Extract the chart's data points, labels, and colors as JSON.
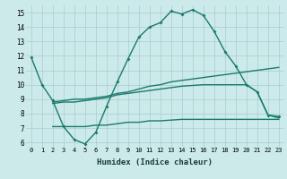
{
  "xlabel": "Humidex (Indice chaleur)",
  "xlim": [
    -0.5,
    23.5
  ],
  "ylim": [
    5.7,
    15.5
  ],
  "yticks": [
    6,
    7,
    8,
    9,
    10,
    11,
    12,
    13,
    14,
    15
  ],
  "xticks": [
    0,
    1,
    2,
    3,
    4,
    5,
    6,
    7,
    8,
    9,
    10,
    11,
    12,
    13,
    14,
    15,
    16,
    17,
    18,
    19,
    20,
    21,
    22,
    23
  ],
  "background_color": "#cceaea",
  "grid_color": "#aacccc",
  "line_color": "#1a7a6e",
  "lines": [
    {
      "x": [
        0,
        1,
        2,
        3,
        4,
        5,
        6,
        7,
        8,
        9,
        10,
        11,
        12,
        13,
        14,
        15,
        16,
        17,
        18,
        19,
        20,
        21,
        22,
        23
      ],
      "y": [
        11.9,
        10.0,
        8.9,
        7.1,
        6.2,
        5.9,
        6.7,
        8.5,
        10.2,
        11.8,
        13.3,
        14.0,
        14.3,
        15.1,
        14.9,
        15.2,
        14.8,
        13.7,
        12.3,
        11.3,
        10.0,
        9.5,
        7.9,
        7.8
      ],
      "marker": true,
      "lw": 1.0
    },
    {
      "x": [
        2,
        3,
        4,
        5,
        6,
        7,
        8,
        9,
        10,
        11,
        12,
        13,
        14,
        15,
        16,
        17,
        18,
        19,
        20,
        21,
        22,
        23
      ],
      "y": [
        8.8,
        8.9,
        9.0,
        9.0,
        9.1,
        9.2,
        9.4,
        9.5,
        9.7,
        9.9,
        10.0,
        10.2,
        10.3,
        10.4,
        10.5,
        10.6,
        10.7,
        10.8,
        10.9,
        11.0,
        11.1,
        11.2
      ],
      "marker": false,
      "lw": 1.0
    },
    {
      "x": [
        2,
        3,
        4,
        5,
        6,
        7,
        8,
        9,
        10,
        11,
        12,
        13,
        14,
        15,
        16,
        17,
        18,
        19,
        20,
        21,
        22,
        23
      ],
      "y": [
        8.7,
        8.8,
        8.8,
        8.9,
        9.0,
        9.1,
        9.3,
        9.4,
        9.5,
        9.6,
        9.7,
        9.8,
        9.9,
        9.95,
        10.0,
        10.0,
        10.0,
        10.0,
        10.0,
        9.5,
        7.9,
        7.7
      ],
      "marker": false,
      "lw": 1.0
    },
    {
      "x": [
        2,
        3,
        4,
        5,
        6,
        7,
        8,
        9,
        10,
        11,
        12,
        13,
        14,
        15,
        16,
        17,
        18,
        19,
        20,
        21,
        22,
        23
      ],
      "y": [
        7.1,
        7.1,
        7.1,
        7.1,
        7.2,
        7.2,
        7.3,
        7.4,
        7.4,
        7.5,
        7.5,
        7.55,
        7.6,
        7.6,
        7.6,
        7.6,
        7.6,
        7.6,
        7.6,
        7.6,
        7.6,
        7.6
      ],
      "marker": false,
      "lw": 1.0
    }
  ]
}
